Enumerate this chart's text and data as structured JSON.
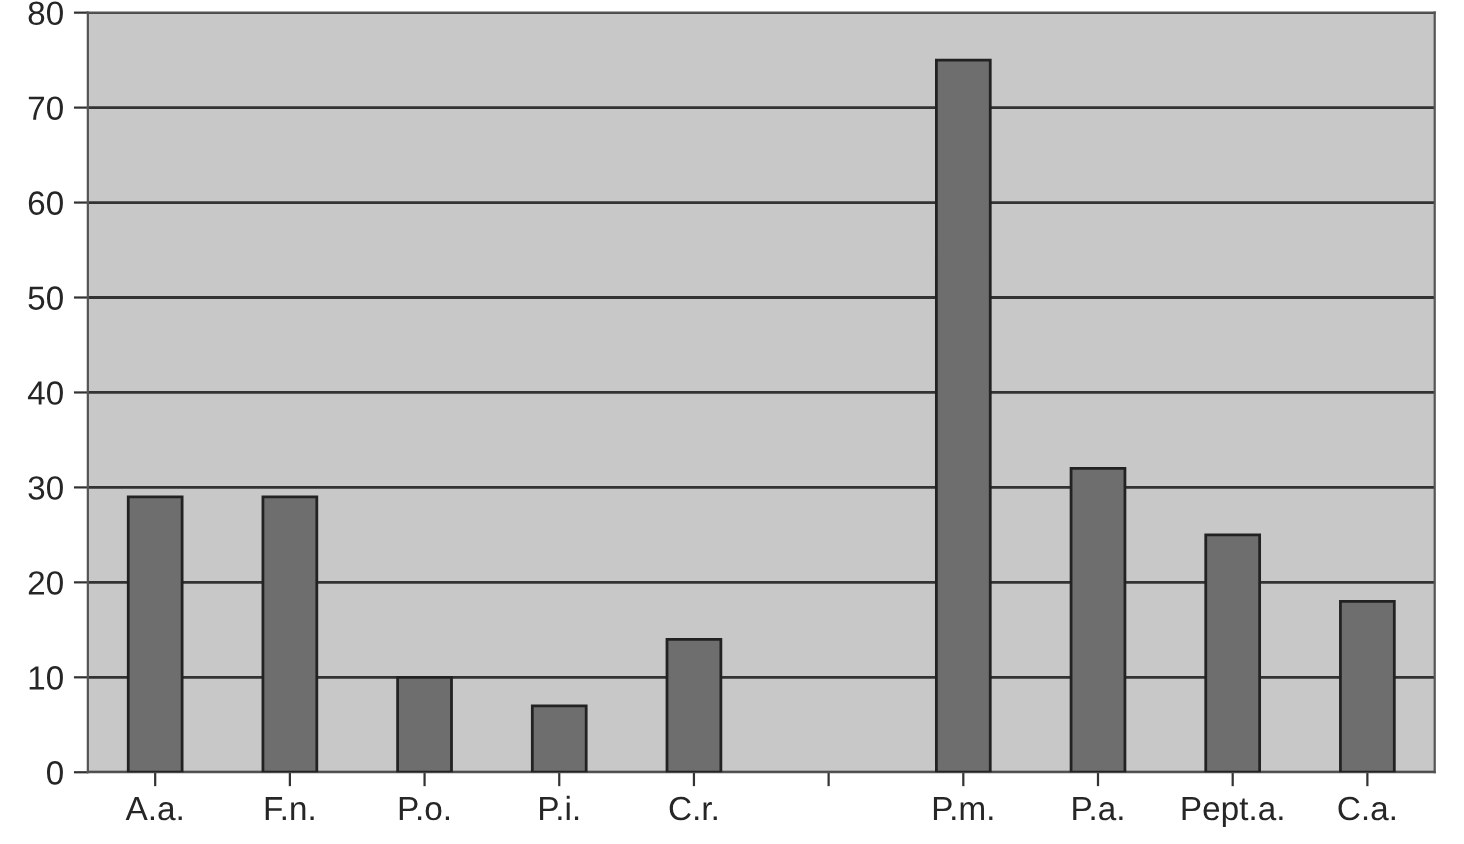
{
  "chart_data": {
    "type": "bar",
    "categories": [
      "A.a.",
      "F.n.",
      "P.o.",
      "P.i.",
      "C.r.",
      null,
      "P.m.",
      "P.a.",
      "Pept.a.",
      "C.a."
    ],
    "values": [
      29,
      29,
      10,
      7,
      14,
      null,
      75,
      32,
      25,
      18
    ],
    "color": "#6e6e6e",
    "ylim": [
      0,
      80
    ],
    "yticks": [
      0,
      10,
      20,
      30,
      40,
      50,
      60,
      70,
      80
    ],
    "grid": "y",
    "legend": false
  }
}
